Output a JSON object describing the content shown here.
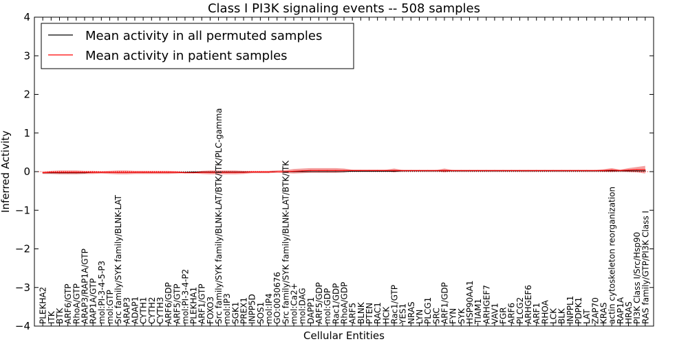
{
  "chart_data": {
    "type": "line",
    "title": "Class I PI3K signaling events -- 508 samples",
    "xlabel": "Cellular Entities",
    "ylabel": "Inferred Activity",
    "ylim": [
      -4,
      4
    ],
    "yticks": [
      "4",
      "3",
      "2",
      "1",
      "0",
      "−1",
      "−2",
      "−3",
      "−4"
    ],
    "yticks_values": [
      4,
      3,
      2,
      1,
      0,
      -1,
      -2,
      -3,
      -4
    ],
    "legend_position": "top-left",
    "categories": [
      "PLEKHA2",
      "ITK",
      "BTK",
      "ARF6/GTP",
      "RhoA/GTP",
      "ARAP3/RAP1A/GTP",
      "RAP1A/GTP",
      "mol:PI-3-4-5-P3",
      "mol:GTP",
      "Src family/SYK family/BLNK-LAT",
      "ARAP3",
      "ADAP1",
      "CYTH1",
      "CYTH2",
      "CYTH3",
      "ARF6/GDP",
      "ARF5/GTP",
      "mol:PI-3-4-P2",
      "PLEKHA1",
      "ARF1/GTP",
      "FOXO3",
      "Src family/SYK family/BLNK-LAT/BTK/ITK/PLC-gamma",
      "mol:IP3",
      "SGK1",
      "PREX1",
      "INPP5D",
      "SOS1",
      "mol:IP4",
      "GO:0030676",
      "Src family/SYK family/BLNK-LAT/BTK/ITK",
      "mol:Ca2+",
      "mol:DAG",
      "DAPP1",
      "ARF5/GDP",
      "mol:GDP",
      "Rac1/GDP",
      "RhoA/GDP",
      "ARF5",
      "BLNK",
      "PTEN",
      "RAC1",
      "HCK",
      "Rac1/GTP",
      "YES1",
      "NRAS",
      "LYN",
      "PLCG1",
      "SRC",
      "ARF1/GDP",
      "FYN",
      "SYK",
      "HSP90AA1",
      "TIAM1",
      "ARHGEF7",
      "VAV1",
      "FGR",
      "ARF6",
      "PLCG2",
      "ARHGEF6",
      "ARF1",
      "RHOA",
      "LCK",
      "BLK",
      "INPPL1",
      "PDPK1",
      "LAT",
      "ZAP70",
      "KRAS",
      "actin cytoskeleton reorganization",
      "RAP1A",
      "HRAS",
      "PI3K Class I/Src/Hsp90",
      "RAS family/GTP/PI3K Class I"
    ],
    "series": [
      {
        "name": "Mean activity in all permuted samples",
        "color": "#000000",
        "values": [
          -0.03,
          -0.03,
          -0.03,
          -0.03,
          -0.03,
          -0.03,
          -0.02,
          -0.02,
          -0.02,
          -0.02,
          -0.02,
          -0.02,
          -0.02,
          -0.02,
          -0.02,
          -0.02,
          -0.02,
          -0.02,
          -0.01,
          -0.01,
          -0.01,
          -0.01,
          -0.01,
          -0.01,
          -0.01,
          -0.01,
          -0.01,
          -0.01,
          0.0,
          0.0,
          0.0,
          0.0,
          0.0,
          0.0,
          0.0,
          0.0,
          0.0,
          0.01,
          0.01,
          0.01,
          0.01,
          0.01,
          0.01,
          0.02,
          0.02,
          0.02,
          0.02,
          0.02,
          0.02,
          0.02,
          0.02,
          0.02,
          0.02,
          0.02,
          0.02,
          0.02,
          0.02,
          0.02,
          0.02,
          0.02,
          0.02,
          0.02,
          0.02,
          0.02,
          0.02,
          0.02,
          0.02,
          0.02,
          0.02,
          0.02,
          0.02,
          0.02,
          0.02
        ]
      },
      {
        "name": "Mean activity in patient samples",
        "color": "#ff0000",
        "values": [
          -0.03,
          -0.02,
          -0.02,
          -0.02,
          -0.02,
          -0.02,
          -0.02,
          -0.02,
          -0.02,
          -0.02,
          -0.02,
          -0.02,
          -0.02,
          -0.02,
          -0.02,
          -0.02,
          -0.02,
          -0.03,
          -0.03,
          -0.02,
          -0.02,
          -0.02,
          -0.02,
          -0.02,
          -0.02,
          -0.01,
          -0.01,
          -0.01,
          0.0,
          0.0,
          0.01,
          0.02,
          0.03,
          0.03,
          0.03,
          0.03,
          0.03,
          0.03,
          0.03,
          0.03,
          0.03,
          0.03,
          0.03,
          0.03,
          0.03,
          0.03,
          0.03,
          0.03,
          0.03,
          0.03,
          0.03,
          0.03,
          0.03,
          0.03,
          0.03,
          0.03,
          0.03,
          0.03,
          0.03,
          0.03,
          0.03,
          0.03,
          0.03,
          0.03,
          0.03,
          0.03,
          0.03,
          0.03,
          0.04,
          0.03,
          0.04,
          0.05,
          0.05
        ]
      }
    ],
    "band_halfwidth": [
      0.03,
      0.04,
      0.05,
      0.05,
      0.05,
      0.04,
      0.04,
      0.03,
      0.04,
      0.05,
      0.05,
      0.04,
      0.04,
      0.04,
      0.04,
      0.04,
      0.03,
      0.01,
      0.01,
      0.04,
      0.05,
      0.05,
      0.05,
      0.05,
      0.04,
      0.03,
      0.03,
      0.03,
      0.03,
      0.04,
      0.06,
      0.06,
      0.06,
      0.06,
      0.06,
      0.06,
      0.05,
      0.02,
      0.02,
      0.02,
      0.02,
      0.02,
      0.05,
      0.01,
      0.01,
      0.01,
      0.01,
      0.01,
      0.05,
      0.01,
      0.01,
      0.01,
      0.01,
      0.01,
      0.01,
      0.01,
      0.01,
      0.01,
      0.01,
      0.01,
      0.01,
      0.01,
      0.01,
      0.01,
      0.01,
      0.01,
      0.01,
      0.03,
      0.05,
      0.02,
      0.05,
      0.07,
      0.1
    ],
    "band_color": "#f08080",
    "zero_line_color": "#ff0000"
  }
}
